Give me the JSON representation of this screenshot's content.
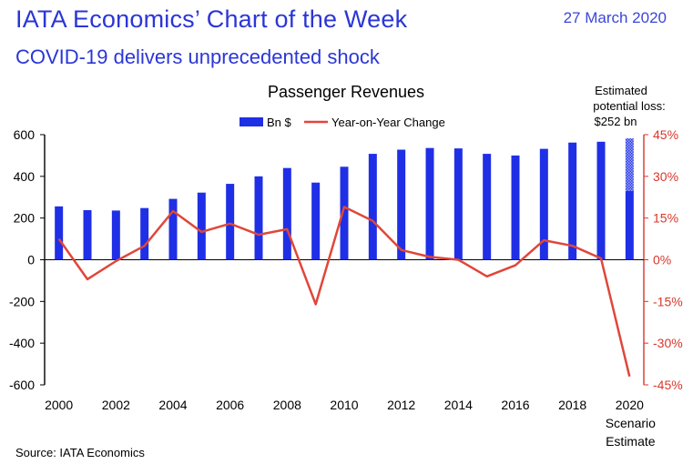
{
  "header": {
    "title": "IATA Economics’ Chart of the Week",
    "date": "27 March 2020",
    "subtitle": "COVID-19 delivers unprecedented shock",
    "source": "Source: IATA Economics"
  },
  "colors": {
    "brand": "#2b36d6",
    "bars": "#1f2fe6",
    "line": "#e0463a",
    "axis_left": "#000000",
    "axis_right": "#d9372b"
  },
  "chart_data": {
    "type": "bar",
    "title": "Passenger Revenues",
    "legend": {
      "placement": "top",
      "bars_label": "Bn $",
      "line_label": "Year-on-Year Change"
    },
    "x": [
      2000,
      2001,
      2002,
      2003,
      2004,
      2005,
      2006,
      2007,
      2008,
      2009,
      2010,
      2011,
      2012,
      2013,
      2014,
      2015,
      2016,
      2017,
      2018,
      2019,
      2020
    ],
    "x_tick_labels": [
      "2000",
      "2002",
      "2004",
      "2006",
      "2008",
      "2010",
      "2012",
      "2014",
      "2016",
      "2018",
      "2020"
    ],
    "x_extra_label": [
      "Scenario",
      "Estimate"
    ],
    "y_left": {
      "ylim": [
        -600,
        600
      ],
      "ticks": [
        "600",
        "400",
        "200",
        "0",
        "-200",
        "-400",
        "-600"
      ]
    },
    "y_right": {
      "ylim": [
        -45,
        45
      ],
      "ticks": [
        "45%",
        "30%",
        "15%",
        "0%",
        "-15%",
        "-30%",
        "-45%"
      ]
    },
    "series": [
      {
        "name": "Bn $",
        "type": "bar",
        "values": [
          256,
          238,
          236,
          248,
          292,
          322,
          364,
          400,
          440,
          370,
          446,
          508,
          528,
          536,
          534,
          508,
          500,
          532,
          562,
          566,
          330
        ]
      },
      {
        "name": "Year-on-Year Change",
        "type": "line",
        "values": [
          7.5,
          -7,
          -0.5,
          5,
          17.5,
          10,
          13,
          9,
          11,
          -16,
          19,
          14,
          3.5,
          1,
          0,
          -6,
          -2,
          7,
          5,
          0.5,
          -42
        ]
      }
    ],
    "estimated_loss": {
      "value": 252,
      "annotation": [
        "Estimated",
        "potential loss:",
        "$252 bn"
      ]
    }
  }
}
